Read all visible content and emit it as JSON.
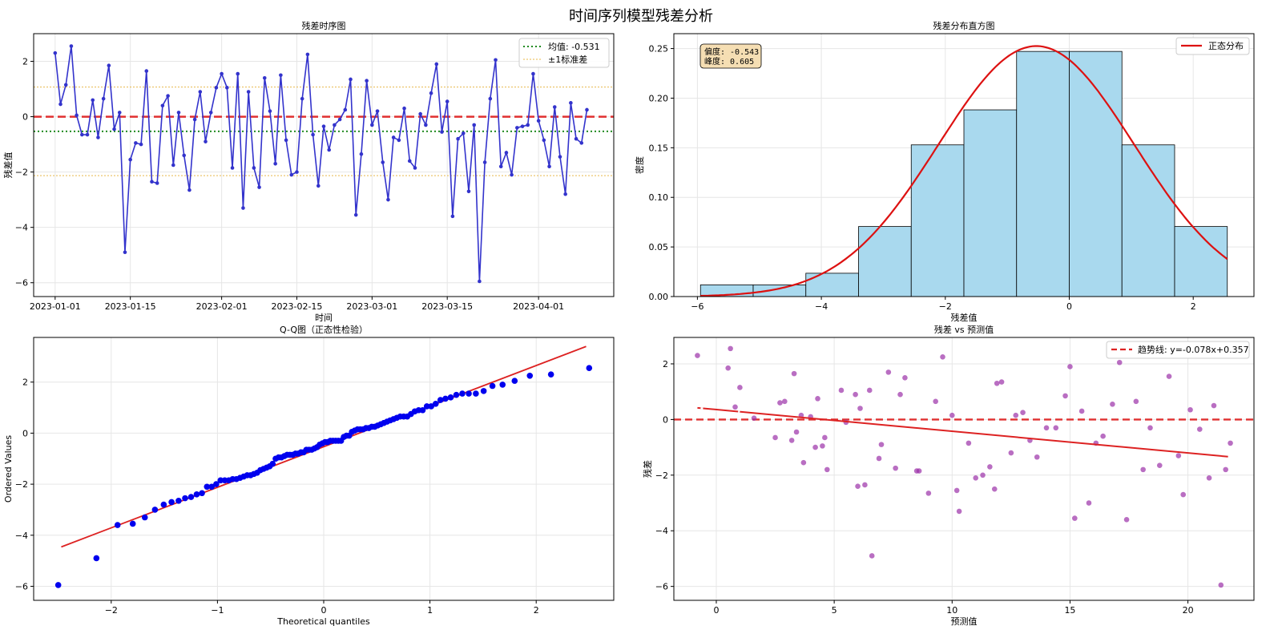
{
  "page_title": "时间序列模型残差分析",
  "colors": {
    "ts_line": "#3333cc",
    "zero_line": "#e03030",
    "mean_line": "#228b22",
    "std_line": "#e8b84a",
    "hist_fill": "#a9d9ee",
    "normal_curve": "#dd1111",
    "qq_point": "#0000ee",
    "qq_line": "#dd2222",
    "scatter_point": "#9b30a8",
    "trend_line": "#dd2222"
  },
  "chart_data": [
    {
      "id": "ts",
      "type": "line",
      "title": "残差时序图",
      "xlabel": "时间",
      "ylabel": "残差值",
      "x_ticks": [
        "2023-01-01",
        "2023-01-15",
        "2023-02-01",
        "2023-02-15",
        "2023-03-01",
        "2023-03-15",
        "2023-04-01"
      ],
      "x_tick_days": [
        0,
        14,
        31,
        45,
        59,
        73,
        90
      ],
      "xlim_days": [
        -4,
        104
      ],
      "ylim": [
        -6.5,
        3.0
      ],
      "y_ticks": [
        -6,
        -4,
        -2,
        0,
        2
      ],
      "mean": -0.531,
      "std_band": [
        1.07,
        -2.13
      ],
      "values": [
        2.3,
        0.45,
        1.15,
        2.55,
        0.05,
        -0.65,
        -0.65,
        0.6,
        -0.75,
        0.65,
        1.85,
        -0.45,
        0.15,
        -4.9,
        -1.55,
        -0.95,
        -1.0,
        1.65,
        -2.35,
        -2.4,
        0.4,
        0.75,
        -1.75,
        0.15,
        -1.4,
        -2.65,
        -0.1,
        0.9,
        -0.9,
        0.15,
        1.05,
        1.55,
        1.05,
        -1.85,
        1.55,
        -3.3,
        0.9,
        -1.85,
        -2.55,
        1.4,
        0.2,
        -1.7,
        1.5,
        -0.85,
        -2.1,
        -2.0,
        0.65,
        2.25,
        -0.65,
        -2.5,
        -0.35,
        -1.2,
        -0.3,
        -0.1,
        0.25,
        1.35,
        -3.55,
        -1.35,
        1.3,
        -0.3,
        0.2,
        -1.65,
        -3.0,
        -0.75,
        -0.85,
        0.3,
        -1.6,
        -1.85,
        0.1,
        -0.3,
        0.85,
        1.9,
        -0.55,
        0.55,
        -3.6,
        -0.8,
        -0.6,
        -2.7,
        -0.3,
        -5.95,
        -1.65,
        0.65,
        2.05,
        -1.8,
        -1.3,
        -2.1,
        -0.4,
        -0.35,
        -0.3,
        1.55,
        -0.15,
        -0.85,
        -1.8,
        0.35,
        -1.45,
        -2.8,
        0.5,
        -0.8,
        -0.95,
        0.25
      ],
      "legend": [
        "均值: -0.531",
        "±1标准差"
      ]
    },
    {
      "id": "hist",
      "type": "bar",
      "title": "残差分布直方图",
      "xlabel": "残差值",
      "ylabel": "密度",
      "bin_edges": [
        -5.95,
        -5.1,
        -4.25,
        -3.4,
        -2.55,
        -1.7,
        -0.85,
        0.0,
        0.85,
        1.7,
        2.55
      ],
      "values": [
        0.0118,
        0.0118,
        0.0235,
        0.0706,
        0.1529,
        0.1882,
        0.2471,
        0.2471,
        0.1529,
        0.0706
      ],
      "xlim": [
        -6.38,
        2.98
      ],
      "ylim": [
        0,
        0.265
      ],
      "x_ticks": [
        -6,
        -4,
        -2,
        0,
        2
      ],
      "y_ticks": [
        0.0,
        0.05,
        0.1,
        0.15,
        0.2,
        0.25
      ],
      "normal_mean": -0.531,
      "normal_std": 1.58,
      "stats_lines": [
        "偏度: -0.543",
        "峰度: 0.605"
      ],
      "legend": [
        "正态分布"
      ]
    },
    {
      "id": "qq",
      "type": "scatter",
      "title": "Q-Q图（正态性检验）",
      "xlabel": "Theoretical quantiles",
      "ylabel": "Ordered Values",
      "xlim": [
        -2.73,
        2.73
      ],
      "ylim": [
        -6.55,
        3.75
      ],
      "x_ticks": [
        -2,
        -1,
        0,
        1,
        2
      ],
      "y_ticks": [
        -6,
        -4,
        -2,
        0,
        2
      ],
      "fit_line": {
        "slope": 1.59,
        "intercept": -0.531
      },
      "n_points": 100
    },
    {
      "id": "scatter",
      "type": "scatter",
      "title": "残差 vs 预测值",
      "xlabel": "预测值",
      "ylabel": "残差",
      "xlim": [
        -1.8,
        22.8
      ],
      "ylim": [
        -6.5,
        2.95
      ],
      "x_ticks": [
        0,
        5,
        10,
        15,
        20
      ],
      "y_ticks": [
        -6,
        -4,
        -2,
        0,
        2
      ],
      "trend": {
        "slope": -0.078,
        "intercept": 0.357,
        "x_range": [
          -0.8,
          21.7
        ]
      },
      "legend": [
        "趋势线: y=-0.078x+0.357"
      ],
      "x": [
        -0.8,
        0.6,
        0.8,
        0.5,
        1.0,
        1.6,
        2.5,
        2.7,
        2.9,
        3.2,
        3.3,
        3.4,
        3.6,
        3.7,
        4.0,
        4.2,
        4.3,
        4.5,
        4.6,
        4.7,
        5.3,
        5.5,
        5.9,
        6.0,
        6.1,
        6.3,
        6.5,
        6.6,
        6.9,
        7.0,
        7.3,
        7.6,
        7.8,
        8.0,
        8.5,
        8.6,
        9.0,
        9.3,
        9.6,
        10.0,
        10.2,
        10.3,
        10.7,
        11.0,
        11.3,
        11.6,
        11.8,
        11.9,
        12.1,
        12.5,
        12.7,
        13.0,
        13.3,
        13.6,
        14.0,
        14.4,
        14.8,
        15.0,
        15.2,
        15.5,
        15.8,
        16.1,
        16.4,
        16.8,
        17.1,
        17.4,
        17.8,
        18.1,
        18.4,
        18.8,
        19.2,
        19.6,
        19.8,
        20.1,
        20.5,
        20.9,
        21.1,
        21.4,
        21.6,
        21.8
      ],
      "y": [
        2.3,
        2.55,
        0.45,
        1.85,
        1.15,
        0.05,
        -0.65,
        0.6,
        0.65,
        -0.75,
        1.65,
        -0.45,
        0.15,
        -1.55,
        0.1,
        -1.0,
        0.75,
        -0.95,
        -0.65,
        -1.8,
        1.05,
        -0.1,
        0.9,
        -2.4,
        0.4,
        -2.35,
        1.05,
        -4.9,
        -1.4,
        -0.9,
        1.7,
        -1.75,
        0.9,
        1.5,
        -1.85,
        -1.85,
        -2.65,
        0.65,
        2.25,
        0.15,
        -2.55,
        -3.3,
        -0.85,
        -2.1,
        -2.0,
        -1.7,
        -2.5,
        1.3,
        1.35,
        -1.2,
        0.15,
        0.25,
        -0.75,
        -1.35,
        -0.3,
        -0.3,
        0.85,
        1.9,
        -3.55,
        0.3,
        -3.0,
        -0.85,
        -0.6,
        0.55,
        2.05,
        -3.6,
        0.65,
        -1.8,
        -0.3,
        -1.65,
        1.55,
        -1.3,
        -2.7,
        0.35,
        -0.35,
        -2.1,
        0.5,
        -5.95,
        -1.8,
        -0.85
      ]
    }
  ]
}
